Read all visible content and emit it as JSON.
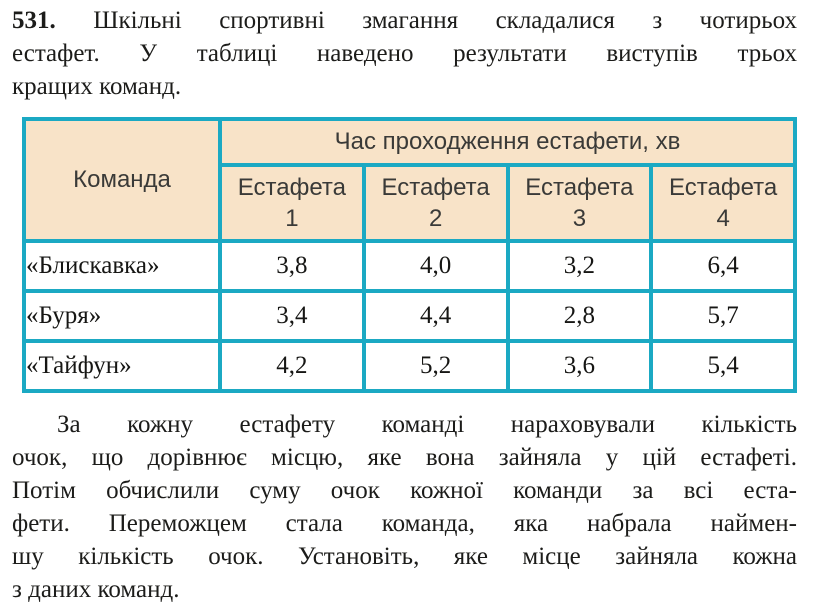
{
  "problem": {
    "number": "531.",
    "statement_lines": [
      "Шкільні спортивні змагання складалися з чотирьох",
      "естафет. У таблиці наведено результати виступів трьох",
      "кращих команд."
    ]
  },
  "table": {
    "team_column_header": "Команда",
    "time_group_header": "Час проходження естафети, хв",
    "relay_label": "Естафета",
    "relay_numbers": [
      "1",
      "2",
      "3",
      "4"
    ],
    "rows": [
      {
        "team": "«Блискавка»",
        "times": [
          "3,8",
          "4,0",
          "3,2",
          "6,4"
        ]
      },
      {
        "team": "«Буря»",
        "times": [
          "3,4",
          "4,4",
          "2,8",
          "5,7"
        ]
      },
      {
        "team": "«Тайфун»",
        "times": [
          "4,2",
          "5,2",
          "3,6",
          "5,4"
        ]
      }
    ]
  },
  "question": {
    "lines": [
      "За кожну естафету команді нараховували кількість",
      "очок, що дорівнює місцю, яке вона зайняла у цій естафеті.",
      "Потім обчислили суму очок кожної команди за всі еста-",
      "фети. Переможцем стала команда, яка набрала наймен-",
      "шу кількість очок. Установіть, яке місце зайняла кожна",
      "з даних команд."
    ]
  },
  "theme": {
    "table_border_color": "#1ba9c3",
    "table_header_bg": "#f8e3c8",
    "text_color": "#1c1c1a",
    "page_bg": "#ffffff"
  }
}
